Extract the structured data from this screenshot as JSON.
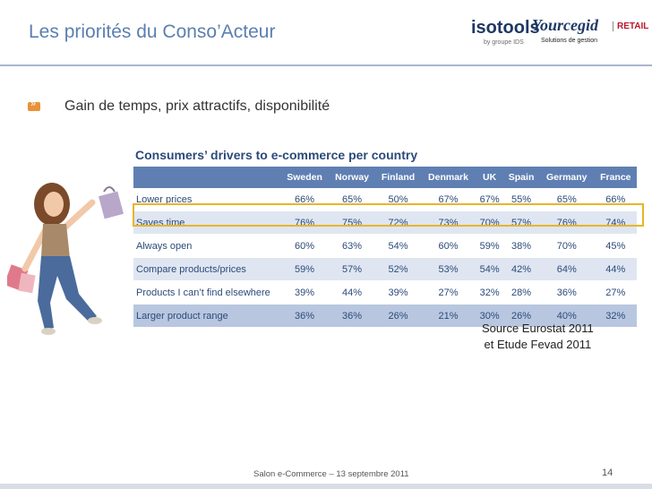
{
  "slide": {
    "title": "Les priorités du Conso’Acteur",
    "bullet": "Gain de temps, prix attractifs, disponibilité",
    "source_line1": "Source Eurostat 2011",
    "source_line2": "et Etude Fevad 2011",
    "footer": "Salon e-Commerce – 13 septembre 2011",
    "page_number": "14"
  },
  "logos": {
    "isotools": "isotools",
    "isotools_sub": "by groupe IDS",
    "yourcegid": "Yourcegid",
    "yourcegid_sub": "Solutions de gestion",
    "retail": "RETAIL"
  },
  "table": {
    "title": "Consumers’ drivers to e-commerce per country",
    "columns": [
      "Sweden",
      "Norway",
      "Finland",
      "Denmark",
      "UK",
      "Spain",
      "Germany",
      "France"
    ],
    "rows": [
      {
        "label": "Lower prices",
        "values": [
          "66%",
          "65%",
          "50%",
          "67%",
          "67%",
          "55%",
          "65%",
          "66%"
        ]
      },
      {
        "label": "Saves time",
        "values": [
          "76%",
          "75%",
          "72%",
          "73%",
          "70%",
          "57%",
          "76%",
          "74%"
        ]
      },
      {
        "label": "Always open",
        "values": [
          "60%",
          "63%",
          "54%",
          "60%",
          "59%",
          "38%",
          "70%",
          "45%"
        ]
      },
      {
        "label": "Compare products/prices",
        "values": [
          "59%",
          "57%",
          "52%",
          "53%",
          "54%",
          "42%",
          "64%",
          "44%"
        ]
      },
      {
        "label": "Products I can’t find elsewhere",
        "values": [
          "39%",
          "44%",
          "39%",
          "27%",
          "32%",
          "28%",
          "36%",
          "27%"
        ]
      },
      {
        "label": "Larger product range",
        "values": [
          "36%",
          "36%",
          "26%",
          "21%",
          "30%",
          "26%",
          "40%",
          "32%"
        ]
      }
    ]
  },
  "colors": {
    "title": "#5b7fb0",
    "header": "#5f7fb3",
    "highlight": "#e8b52a",
    "bullet": "#e8923a"
  }
}
